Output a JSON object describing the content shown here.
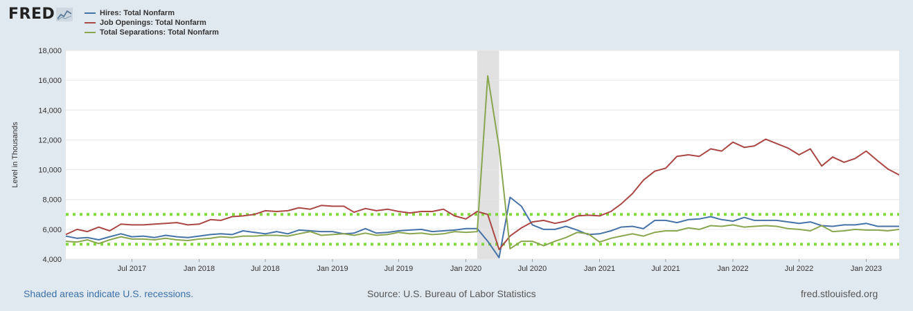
{
  "brand": {
    "logo_text": "FRED",
    "logo_icon": "line-graph-icon"
  },
  "footer": {
    "recession_note": "Shaded areas indicate U.S. recessions.",
    "source": "Source: U.S. Bureau of Labor Statistics",
    "site": "fred.stlouisfed.org"
  },
  "colors": {
    "hires": "#4572a7",
    "openings": "#aa4643",
    "separations": "#89a54e",
    "recession": "#e1e1e1",
    "dotted": "#7fd93a"
  },
  "chart_data": {
    "type": "line",
    "xlabel": "",
    "ylabel": "Level in Thousands",
    "ylim": [
      4000,
      18000
    ],
    "yticks": [
      4000,
      6000,
      8000,
      10000,
      12000,
      14000,
      16000,
      18000
    ],
    "ytick_labels": [
      "4,000",
      "6,000",
      "8,000",
      "10,000",
      "12,000",
      "14,000",
      "16,000",
      "18,000"
    ],
    "xticks": [
      {
        "date": "2017-07-01",
        "label": "Jul 2017"
      },
      {
        "date": "2018-01-01",
        "label": "Jan 2018"
      },
      {
        "date": "2018-07-01",
        "label": "Jul 2018"
      },
      {
        "date": "2019-01-01",
        "label": "Jan 2019"
      },
      {
        "date": "2019-07-01",
        "label": "Jul 2019"
      },
      {
        "date": "2020-01-01",
        "label": "Jan 2020"
      },
      {
        "date": "2020-07-01",
        "label": "Jul 2020"
      },
      {
        "date": "2021-01-01",
        "label": "Jan 2021"
      },
      {
        "date": "2021-07-01",
        "label": "Jul 2021"
      },
      {
        "date": "2022-01-01",
        "label": "Jan 2022"
      },
      {
        "date": "2022-07-01",
        "label": "Jul 2022"
      },
      {
        "date": "2023-01-01",
        "label": "Jan 2023"
      }
    ],
    "x_start": "2017-01-01",
    "x_end": "2023-04-01",
    "recession": {
      "start": "2020-02-01",
      "end": "2020-04-01"
    },
    "reference_lines": [
      5000,
      7000
    ],
    "x": [
      "2017-01",
      "2017-02",
      "2017-03",
      "2017-04",
      "2017-05",
      "2017-06",
      "2017-07",
      "2017-08",
      "2017-09",
      "2017-10",
      "2017-11",
      "2017-12",
      "2018-01",
      "2018-02",
      "2018-03",
      "2018-04",
      "2018-05",
      "2018-06",
      "2018-07",
      "2018-08",
      "2018-09",
      "2018-10",
      "2018-11",
      "2018-12",
      "2019-01",
      "2019-02",
      "2019-03",
      "2019-04",
      "2019-05",
      "2019-06",
      "2019-07",
      "2019-08",
      "2019-09",
      "2019-10",
      "2019-11",
      "2019-12",
      "2020-01",
      "2020-02",
      "2020-03",
      "2020-04",
      "2020-05",
      "2020-06",
      "2020-07",
      "2020-08",
      "2020-09",
      "2020-10",
      "2020-11",
      "2020-12",
      "2021-01",
      "2021-02",
      "2021-03",
      "2021-04",
      "2021-05",
      "2021-06",
      "2021-07",
      "2021-08",
      "2021-09",
      "2021-10",
      "2021-11",
      "2021-12",
      "2022-01",
      "2022-02",
      "2022-03",
      "2022-04",
      "2022-05",
      "2022-06",
      "2022-07",
      "2022-08",
      "2022-09",
      "2022-10",
      "2022-11",
      "2022-12",
      "2023-01",
      "2023-02",
      "2023-03",
      "2023-04"
    ],
    "series": [
      {
        "name": "Hires: Total Nonfarm",
        "key": "hires",
        "values": [
          5550,
          5400,
          5450,
          5300,
          5500,
          5700,
          5500,
          5550,
          5450,
          5600,
          5500,
          5450,
          5550,
          5650,
          5700,
          5650,
          5900,
          5800,
          5700,
          5850,
          5700,
          5950,
          5900,
          5850,
          5850,
          5700,
          5750,
          6050,
          5750,
          5800,
          5900,
          5950,
          6000,
          5850,
          5900,
          5950,
          6050,
          6050,
          5200,
          4100,
          8150,
          7550,
          6300,
          6000,
          6000,
          6200,
          5950,
          5650,
          5700,
          5900,
          6150,
          6200,
          6050,
          6600,
          6600,
          6450,
          6650,
          6700,
          6850,
          6650,
          6550,
          6800,
          6600,
          6600,
          6600,
          6500,
          6400,
          6500,
          6250,
          6200,
          6300,
          6300,
          6400,
          6200,
          6200,
          6200
        ]
      },
      {
        "name": "Job Openings: Total Nonfarm",
        "key": "openings",
        "values": [
          5650,
          6000,
          5850,
          6150,
          5900,
          6350,
          6300,
          6300,
          6350,
          6400,
          6450,
          6300,
          6350,
          6650,
          6600,
          6850,
          6900,
          7000,
          7250,
          7200,
          7250,
          7450,
          7350,
          7600,
          7550,
          7550,
          7150,
          7400,
          7250,
          7350,
          7200,
          7100,
          7200,
          7200,
          7350,
          6900,
          6700,
          7200,
          7000,
          4650,
          5550,
          6100,
          6500,
          6600,
          6400,
          6550,
          6900,
          6950,
          6900,
          7200,
          7700,
          8400,
          9300,
          9900,
          10100,
          10900,
          11000,
          10900,
          11400,
          11250,
          11850,
          11500,
          11600,
          12050,
          11750,
          11450,
          11000,
          11400,
          10250,
          10850,
          10500,
          10750,
          11250,
          10600,
          10050,
          9650
        ]
      },
      {
        "name": "Total Separations: Total Nonfarm",
        "key": "separations",
        "values": [
          5200,
          5150,
          5300,
          5050,
          5300,
          5500,
          5350,
          5350,
          5300,
          5400,
          5300,
          5250,
          5350,
          5400,
          5500,
          5450,
          5550,
          5550,
          5600,
          5600,
          5550,
          5700,
          5850,
          5600,
          5650,
          5700,
          5600,
          5750,
          5600,
          5650,
          5800,
          5700,
          5750,
          5650,
          5700,
          5850,
          5800,
          5850,
          16300,
          11500,
          4700,
          5200,
          5200,
          4900,
          5200,
          5450,
          5800,
          5700,
          5150,
          5400,
          5550,
          5700,
          5550,
          5800,
          5900,
          5900,
          6100,
          6000,
          6250,
          6200,
          6300,
          6150,
          6200,
          6250,
          6200,
          6050,
          6000,
          5900,
          6250,
          5850,
          5900,
          6000,
          5950,
          5950,
          5900,
          6000
        ]
      }
    ],
    "legend": "top-left",
    "grid": "horizontal"
  }
}
